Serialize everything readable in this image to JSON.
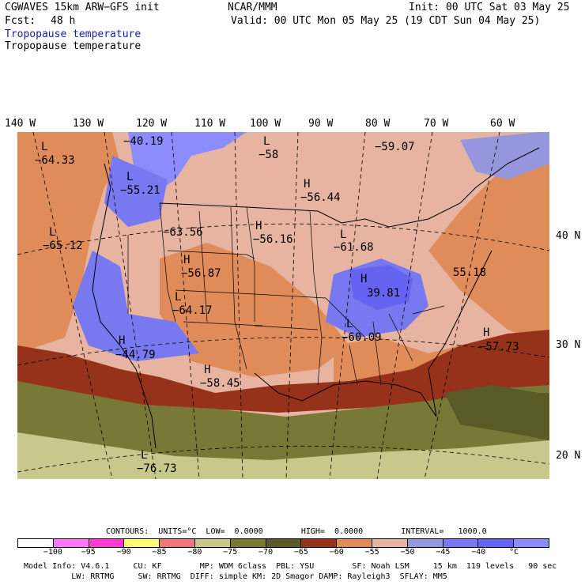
{
  "header": {
    "title": "CGWAVES 15km ARW−GFS init",
    "center": "NCAR/MMM",
    "init": "Init: 00 UTC Sat 03 May 25",
    "fcst_label": "Fcst:",
    "fcst_value": "48 h",
    "valid": "Valid: 00 UTC Mon 05 May 25 (19 CDT Sun 04 May 25)",
    "field_blue": "Tropopause temperature",
    "field_black": "Tropopause temperature"
  },
  "longitudes": [
    "140 W",
    "130 W",
    "120 W",
    "110 W",
    "100 W",
    "90 W",
    "80 W",
    "70 W",
    "60 W"
  ],
  "latitudes": [
    "40 N",
    "30 N",
    "20 N"
  ],
  "map_labels": [
    {
      "letter": "L",
      "value": "−64.33"
    },
    {
      "letter": "",
      "value": "−40.19"
    },
    {
      "letter": "L",
      "value": "−58"
    },
    {
      "letter": "",
      "value": "−59.07"
    },
    {
      "letter": "L",
      "value": "−55.21"
    },
    {
      "letter": "H",
      "value": "−56.44"
    },
    {
      "letter": "L",
      "value": "−65.12"
    },
    {
      "letter": "",
      "value": "−63.56"
    },
    {
      "letter": "H",
      "value": "−56.16"
    },
    {
      "letter": "L",
      "value": "−61.68"
    },
    {
      "letter": "H",
      "value": "−56.87"
    },
    {
      "letter": "",
      "value": "55.18"
    },
    {
      "letter": "H",
      "value": "39.81"
    },
    {
      "letter": "L",
      "value": "−64.17"
    },
    {
      "letter": "H",
      "value": "−44.79"
    },
    {
      "letter": "L",
      "value": "−60.09"
    },
    {
      "letter": "H",
      "value": "−57.73"
    },
    {
      "letter": "H",
      "value": "−58.45"
    },
    {
      "letter": "L",
      "value": "−76.73"
    }
  ],
  "contours_line": "CONTOURS:  UNITS=°C  LOW=  0.0000        HIGH=  0.0000        INTERVAL=   1000.0",
  "colorbar": {
    "colors": [
      "#ffffff",
      "#ff78ff",
      "#ff3cd2",
      "#ffff78",
      "#f07878",
      "#c8c88c",
      "#787837",
      "#5a5a28",
      "#963219",
      "#e08c5a",
      "#e6b4a0",
      "#9696dc",
      "#7878f0",
      "#6464f0",
      "#8c8cff"
    ],
    "ticks": [
      "−100",
      "−95",
      "−90",
      "−85",
      "−80",
      "−75",
      "−70",
      "−65",
      "−60",
      "−55",
      "−50",
      "−45",
      "−40",
      "°C"
    ]
  },
  "footer": {
    "line1": "Model Info: V4.6.1     CU: KF        MP: WDM 6class  PBL: YSU        SF: Noah LSM     15 km  119 levels   90 sec",
    "line2": "          LW: RRTMG     SW: RRTMG  DIFF: simple KM: 2D Smagor DAMP: Rayleigh3  SFLAY: MM5"
  }
}
